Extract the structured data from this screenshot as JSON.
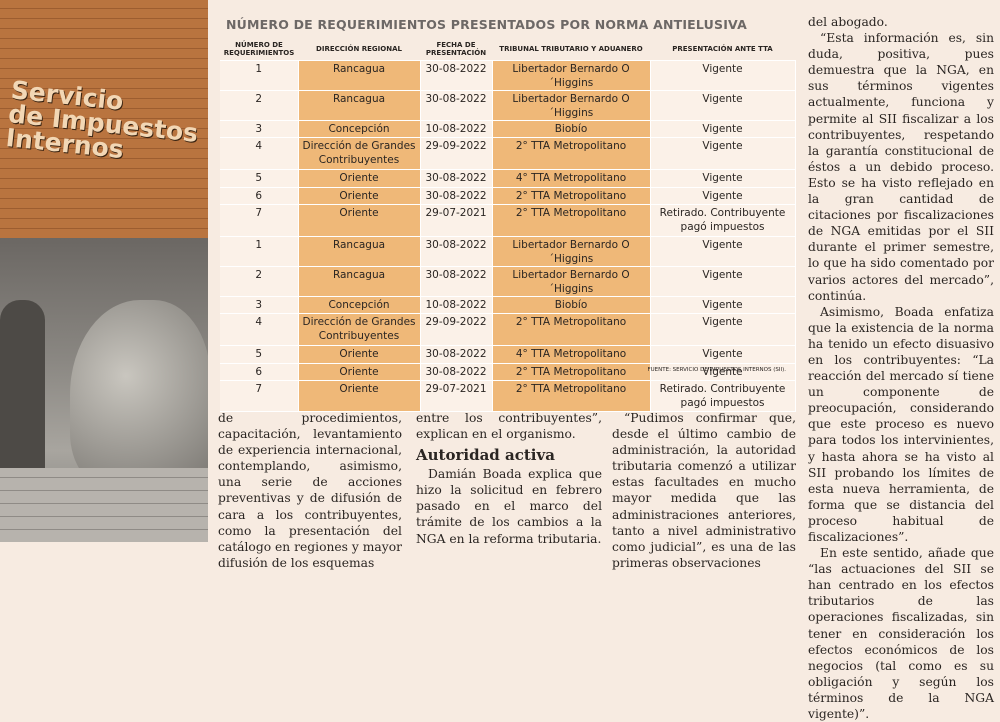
{
  "photo": {
    "sign": [
      "Servicio",
      "de Impuestos",
      "Internos"
    ]
  },
  "table": {
    "title": "NÚMERO DE REQUERIMIENTOS PRESENTADOS POR NORMA ANTIELUSIVA",
    "header": [
      "NÚMERO DE REQUERIMIENTOS",
      "DIRECCIÓN REGIONAL",
      "FECHA DE PRESENTACIÓN",
      "TRIBUNAL TRIBUTARIO Y ADUANERO",
      "PRESENTACIÓN ANTE TTA"
    ],
    "rows": [
      [
        "1",
        "Rancagua",
        "30-08-2022",
        "Libertador Bernardo O´Higgins",
        "Vigente"
      ],
      [
        "2",
        "Rancagua",
        "30-08-2022",
        "Libertador Bernardo O´Higgins",
        "Vigente"
      ],
      [
        "3",
        "Concepción",
        "10-08-2022",
        "Biobío",
        "Vigente"
      ],
      [
        "4",
        "Dirección de Grandes Contribuyentes",
        "29-09-2022",
        "2° TTA Metropolitano",
        "Vigente"
      ],
      [
        "5",
        "Oriente",
        "30-08-2022",
        "4° TTA Metropolitano",
        "Vigente"
      ],
      [
        "6",
        "Oriente",
        "30-08-2022",
        "2° TTA Metropolitano",
        "Vigente"
      ],
      [
        "7",
        "Oriente",
        "29-07-2021",
        "2° TTA Metropolitano",
        "Retirado. Contribuyente pagó impuestos"
      ],
      [
        "1",
        "Rancagua",
        "30-08-2022",
        "Libertador Bernardo O´Higgins",
        "Vigente"
      ],
      [
        "2",
        "Rancagua",
        "30-08-2022",
        "Libertador Bernardo O´Higgins",
        "Vigente"
      ],
      [
        "3",
        "Concepción",
        "10-08-2022",
        "Biobío",
        "Vigente"
      ],
      [
        "4",
        "Dirección de Grandes Contribuyentes",
        "29-09-2022",
        "2° TTA Metropolitano",
        "Vigente"
      ],
      [
        "5",
        "Oriente",
        "30-08-2022",
        "4° TTA Metropolitano",
        "Vigente"
      ],
      [
        "6",
        "Oriente",
        "30-08-2022",
        "2° TTA Metropolitano",
        "Vigente"
      ],
      [
        "7",
        "Oriente",
        "29-07-2021",
        "2° TTA Metropolitano",
        "Retirado. Contribuyente pagó impuestos"
      ]
    ],
    "source": "FUENTE: SERVICIO DE IMPUESTOS INTERNOS (SII)."
  },
  "article": {
    "column_1": [
      "de procedimientos, capacitación, levantamiento de experiencia internacional, contemplando, asimismo, una serie de acciones preventivas y de difusión de cara a los contribuyentes, como la presentación del catálogo en regiones y mayor difusión de los esquemas"
    ],
    "column_2": [
      "entre los contribuyentes”, explican en el organismo."
    ],
    "heading": "Autoridad activa",
    "column_2b": [
      "Damián Boada explica que hizo la solicitud en febrero pasado en el marco del trámite de los cambios a la NGA en la reforma tributaria."
    ],
    "column_3": [
      "“Pudimos confirmar que, desde el último cambio de administración, la autoridad tributaria comenzó a utilizar estas facultades en mucho mayor medida que las administraciones anteriores, tanto a nivel administrativo como judicial”, es una de las primeras observaciones"
    ],
    "column_4": [
      "del abogado.",
      "“Esta información es, sin duda, positiva, pues demuestra que la NGA, en sus términos vigentes actualmente, funciona y permite al SII fiscalizar a los contribuyentes, respetando la garantía constitucional de éstos a un debido proceso. Esto se ha visto reflejado en la gran cantidad de citaciones por fiscalizaciones de NGA emitidas por el SII durante el primer semestre, lo que ha sido comentado por varios actores del mercado”, continúa.",
      "Asimismo, Boada enfatiza que la existencia de la norma ha tenido un efecto disuasivo en los contribuyentes: “La reacción del mercado sí tiene un componente de preocupación, considerando que este proceso es nuevo para todos los intervinientes, y hasta ahora se ha visto al SII probando los límites de esta nueva herramienta, de forma que se distancia del proceso habitual de fiscalizaciones”.",
      "En este sentido, añade que “las actuaciones del SII se han centrado en los efectos tributarios de las operaciones fiscalizadas, sin tener en consideración los efectos económicos de los negocios (tal como es su obligación y según los términos de la NGA vigente)”."
    ]
  }
}
